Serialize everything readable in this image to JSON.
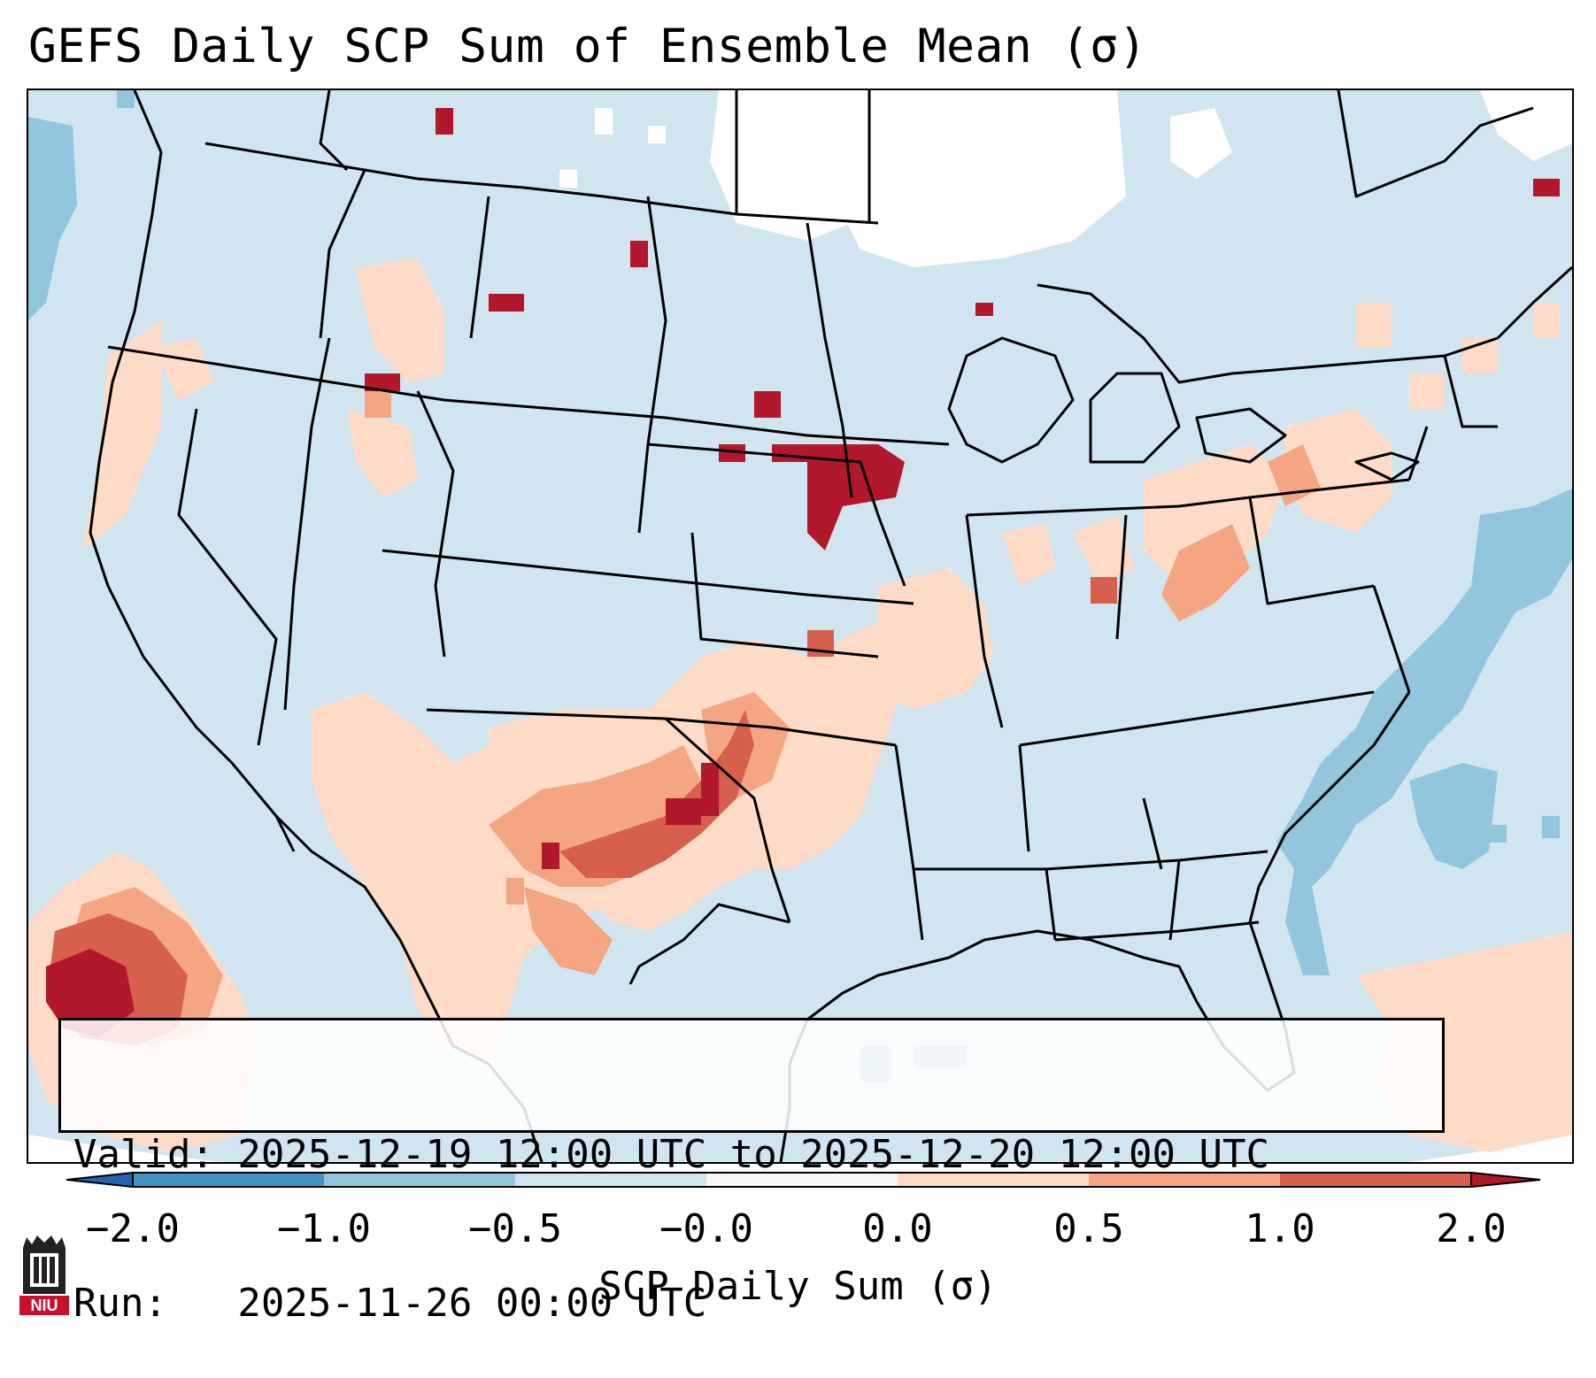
{
  "title": "GEFS Daily SCP Sum of Ensemble Mean (σ)",
  "valid_line": "Valid: 2025-12-19 12:00 UTC to 2025-12-20 12:00 UTC",
  "run_line": "Run:   2025-11-26 00:00 UTC",
  "colorbar": {
    "label": "SCP Daily Sum (σ)",
    "ticks": [
      "−2.0",
      "−1.0",
      "−0.5",
      "−0.0",
      "0.0",
      "0.5",
      "1.0",
      "2.0"
    ],
    "bins": [
      {
        "range": "< -2.0",
        "color": "#2166ac"
      },
      {
        "range": "-2.0 to -1.0",
        "color": "#4393c3"
      },
      {
        "range": "-1.0 to -0.5",
        "color": "#92c5de"
      },
      {
        "range": "-0.5 to -0.0",
        "color": "#d1e5f0"
      },
      {
        "range": "-0.0 to 0.0",
        "color": "#f7f7f7"
      },
      {
        "range": "0.0 to 0.5",
        "color": "#fddbc7"
      },
      {
        "range": "0.5 to 1.0",
        "color": "#f4a582"
      },
      {
        "range": "1.0 to 2.0",
        "color": "#d6604d"
      },
      {
        "range": "> 2.0",
        "color": "#b2182b"
      }
    ]
  },
  "logo": {
    "text": "NIU",
    "color": "#c8102e"
  }
}
